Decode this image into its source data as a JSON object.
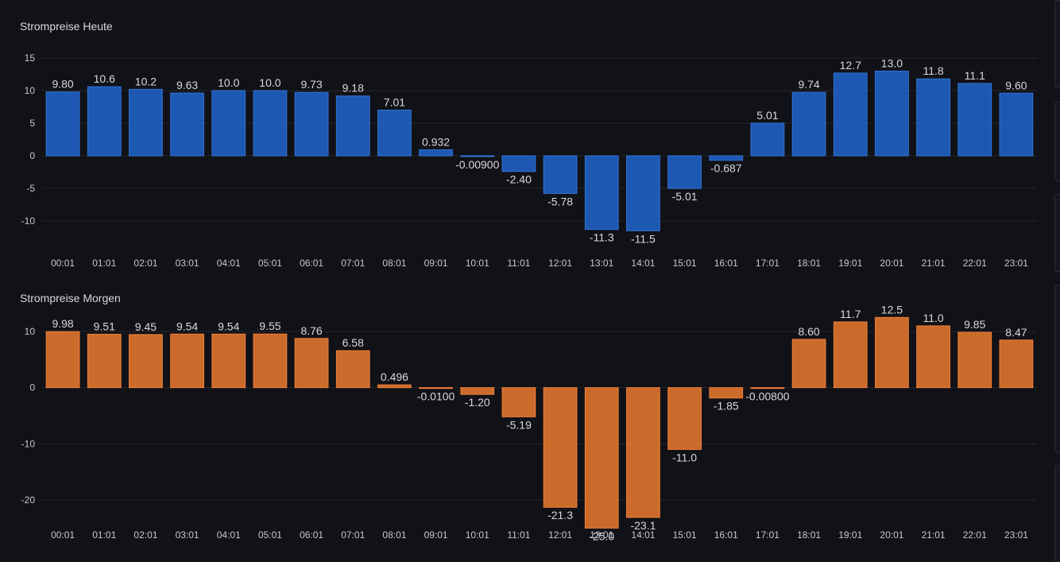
{
  "colors": {
    "background": "#111217",
    "grid": "#24262b",
    "axis_text": "#c7c7d0",
    "label_text": "#d8d9da",
    "heute_fill": "#1f60c4",
    "heute_stroke": "#3274d9",
    "morgen_fill": "#e0752d",
    "morgen_stroke": "#f2803a"
  },
  "chart_data": [
    {
      "type": "bar",
      "title": "Strompreise Heute",
      "categories": [
        "00:01",
        "01:01",
        "02:01",
        "03:01",
        "04:01",
        "05:01",
        "06:01",
        "07:01",
        "08:01",
        "09:01",
        "10:01",
        "11:01",
        "12:01",
        "13:01",
        "14:01",
        "15:01",
        "16:01",
        "17:01",
        "18:01",
        "19:01",
        "20:01",
        "21:01",
        "22:01",
        "23:01"
      ],
      "values": [
        9.8,
        10.6,
        10.2,
        9.63,
        10.0,
        10.0,
        9.73,
        9.18,
        7.01,
        0.932,
        -0.009,
        -2.4,
        -5.78,
        -11.3,
        -11.5,
        -5.01,
        -0.687,
        5.01,
        9.74,
        12.7,
        13.0,
        11.8,
        11.1,
        9.6
      ],
      "value_labels": [
        "9.80",
        "10.6",
        "10.2",
        "9.63",
        "10.0",
        "10.0",
        "9.73",
        "9.18",
        "7.01",
        "0.932",
        "-0.00900",
        "-2.40",
        "-5.78",
        "-11.3",
        "-11.5",
        "-5.01",
        "-0.687",
        "5.01",
        "9.74",
        "12.7",
        "13.0",
        "11.8",
        "11.1",
        "9.60"
      ],
      "yticks": [
        15,
        10,
        5,
        0,
        -5,
        -10
      ],
      "ylim": [
        -13,
        15
      ],
      "grid": true,
      "legend": "none",
      "color": "blue"
    },
    {
      "type": "bar",
      "title": "Strompreise Morgen",
      "categories": [
        "00:01",
        "01:01",
        "02:01",
        "03:01",
        "04:01",
        "05:01",
        "06:01",
        "07:01",
        "08:01",
        "09:01",
        "10:01",
        "11:01",
        "12:01",
        "13:01",
        "14:01",
        "15:01",
        "16:01",
        "17:01",
        "18:01",
        "19:01",
        "20:01",
        "21:01",
        "22:01",
        "23:01"
      ],
      "values": [
        9.98,
        9.51,
        9.45,
        9.54,
        9.54,
        9.55,
        8.76,
        6.58,
        0.496,
        -0.01,
        -1.2,
        -5.19,
        -21.3,
        -25.0,
        -23.1,
        -11.0,
        -1.85,
        -0.008,
        8.6,
        11.7,
        12.5,
        11.0,
        9.85,
        8.47
      ],
      "value_labels": [
        "9.98",
        "9.51",
        "9.45",
        "9.54",
        "9.54",
        "9.55",
        "8.76",
        "6.58",
        "0.496",
        "-0.0100",
        "-1.20",
        "-5.19",
        "-21.3",
        "-25.0",
        "-23.1",
        "-11.0",
        "-1.85",
        "-0.00800",
        "8.60",
        "11.7",
        "12.5",
        "11.0",
        "9.85",
        "8.47"
      ],
      "yticks": [
        10,
        0,
        -10,
        -20
      ],
      "ylim": [
        -28,
        14
      ],
      "grid": true,
      "legend": "none",
      "color": "orange"
    }
  ]
}
